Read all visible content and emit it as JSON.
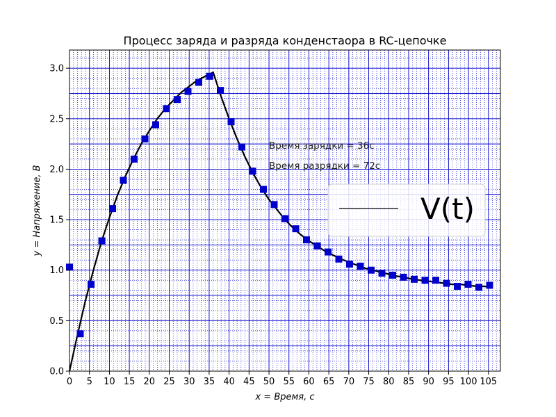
{
  "chart_data": {
    "type": "line",
    "title": "Процесс заряда и разряда конденстаора в RC-цепочке",
    "xlabel": "x = Время, с",
    "ylabel": "y = Напряжение, В",
    "xlim": [
      0,
      108
    ],
    "ylim": [
      0,
      3.18
    ],
    "xticks": [
      0,
      5,
      10,
      15,
      20,
      25,
      30,
      35,
      40,
      45,
      50,
      55,
      60,
      65,
      70,
      75,
      80,
      85,
      90,
      95,
      100,
      105
    ],
    "yticks": [
      0.0,
      0.5,
      1.0,
      1.5,
      2.0,
      2.5,
      3.0
    ],
    "xtick_labels": [
      "0",
      "5",
      "10",
      "15",
      "20",
      "25",
      "30",
      "35",
      "40",
      "45",
      "50",
      "55",
      "60",
      "65",
      "70",
      "75",
      "80",
      "85",
      "90",
      "95",
      "100",
      "105"
    ],
    "ytick_labels": [
      "0.0",
      "0.5",
      "1.0",
      "1.5",
      "2.0",
      "2.5",
      "3.0"
    ],
    "grid": true,
    "legend_position": "right",
    "annotations": [
      "Время зарядки = 36с",
      "Время разрядки = 72с"
    ],
    "colors": {
      "grid_major": "#0000cc",
      "grid_minor": "#0000cc",
      "markers": "#0000cc",
      "line": "#000000"
    },
    "series": [
      {
        "name": "V(t)",
        "kind": "line",
        "x": [
          0,
          2,
          4,
          6,
          8,
          10,
          12,
          14,
          16,
          18,
          20,
          22,
          24,
          26,
          28,
          30,
          32,
          34,
          36,
          38,
          40,
          42,
          44,
          46,
          48,
          50,
          52,
          54,
          56,
          58,
          60,
          62,
          64,
          66,
          68,
          70,
          72,
          74,
          76,
          78,
          80,
          82,
          84,
          86,
          88,
          90,
          92,
          94,
          96,
          98,
          100,
          102,
          104,
          106
        ],
        "y": [
          0.0,
          0.36,
          0.7,
          1.0,
          1.28,
          1.52,
          1.74,
          1.93,
          2.1,
          2.25,
          2.38,
          2.5,
          2.6,
          2.68,
          2.76,
          2.82,
          2.88,
          2.92,
          2.96,
          2.72,
          2.5,
          2.3,
          2.12,
          1.96,
          1.82,
          1.7,
          1.6,
          1.5,
          1.42,
          1.35,
          1.29,
          1.24,
          1.19,
          1.15,
          1.11,
          1.08,
          1.05,
          1.02,
          1.0,
          0.98,
          0.96,
          0.94,
          0.93,
          0.91,
          0.9,
          0.89,
          0.88,
          0.87,
          0.86,
          0.86,
          0.85,
          0.84,
          0.84,
          0.83
        ]
      },
      {
        "kind": "markers",
        "x": [
          0,
          2.7,
          5.4,
          8.1,
          10.8,
          13.5,
          16.2,
          18.9,
          21.6,
          24.3,
          27,
          29.7,
          32.4,
          35.1,
          37.8,
          40.5,
          43.2,
          45.9,
          48.6,
          51.3,
          54,
          56.7,
          59.4,
          62.1,
          64.8,
          67.5,
          70.2,
          72.9,
          75.6,
          78.3,
          81,
          83.7,
          86.4,
          89.1,
          91.8,
          94.5,
          97.2,
          99.9,
          102.6,
          105.3
        ],
        "y": [
          1.03,
          0.37,
          0.86,
          1.29,
          1.61,
          1.89,
          2.1,
          2.3,
          2.44,
          2.6,
          2.69,
          2.77,
          2.86,
          2.92,
          2.78,
          2.47,
          2.22,
          1.98,
          1.8,
          1.65,
          1.51,
          1.41,
          1.3,
          1.24,
          1.18,
          1.11,
          1.06,
          1.04,
          1.0,
          0.97,
          0.95,
          0.93,
          0.91,
          0.9,
          0.9,
          0.87,
          0.84,
          0.86,
          0.83,
          0.85
        ]
      }
    ]
  }
}
